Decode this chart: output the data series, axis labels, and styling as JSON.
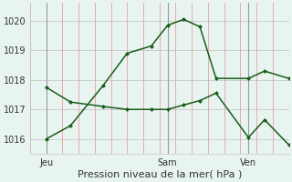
{
  "background_color": "#e8f4f0",
  "line_color": "#1a5c1a",
  "grid_h_color": "#c8c8c8",
  "grid_v_color": "#e8a0a0",
  "vline_color": "#999999",
  "xlabel": "Pression niveau de la mer( hPa )",
  "xlabel_fontsize": 8,
  "ylim": [
    1015.5,
    1020.6
  ],
  "xlim": [
    0,
    16
  ],
  "yticks": [
    1016,
    1017,
    1018,
    1019,
    1020
  ],
  "ytick_fontsize": 7,
  "xtick_fontsize": 7,
  "xtick_labels": [
    "Jeu",
    "Sam",
    "Ven"
  ],
  "xtick_positions": [
    1,
    8.5,
    13.5
  ],
  "vline_positions": [
    1,
    8.5,
    13.5
  ],
  "num_v_gridlines": 17,
  "line1_x": [
    1,
    2.5,
    4.5,
    6.0,
    7.5,
    8.5,
    9.5,
    10.5,
    11.5,
    13.5,
    14.5,
    16
  ],
  "line1_y": [
    1016.0,
    1016.45,
    1017.8,
    1018.9,
    1019.15,
    1019.85,
    1020.05,
    1019.8,
    1018.05,
    1018.05,
    1018.3,
    1018.05
  ],
  "line2_x": [
    1,
    2.5,
    4.5,
    6.0,
    7.5,
    8.5,
    9.5,
    10.5,
    11.5,
    13.5,
    14.5,
    16
  ],
  "line2_y": [
    1017.75,
    1017.25,
    1017.1,
    1017.0,
    1017.0,
    1017.0,
    1017.15,
    1017.3,
    1017.55,
    1016.05,
    1016.65,
    1015.8
  ],
  "marker_size": 2.5,
  "linewidth": 1.1
}
